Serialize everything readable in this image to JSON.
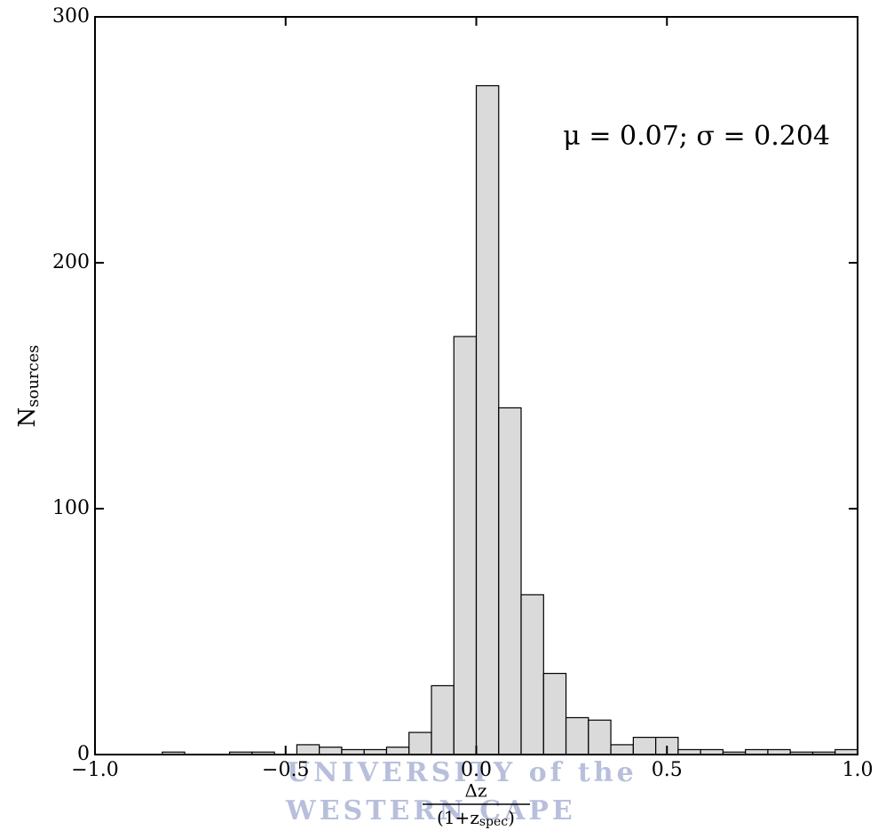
{
  "chart_data": {
    "type": "histogram",
    "bins": [
      -1,
      -0.9412,
      -0.8824,
      -0.8235,
      -0.7647,
      -0.7059,
      -0.6471,
      -0.5882,
      -0.5294,
      -0.4706,
      -0.4118,
      -0.3529,
      -0.2941,
      -0.2353,
      -0.1765,
      -0.1176,
      -0.0588,
      0,
      0.0588,
      0.1176,
      0.1765,
      0.2353,
      0.2941,
      0.3529,
      0.4118,
      0.4706,
      0.5294,
      0.5882,
      0.6471,
      0.7059,
      0.7647,
      0.8235,
      0.8824,
      0.9412,
      1
    ],
    "values": [
      0,
      0,
      0,
      1,
      0,
      0,
      1,
      1,
      0,
      4,
      3,
      2,
      2,
      3,
      9,
      28,
      170,
      272,
      141,
      65,
      33,
      15,
      14,
      4,
      7,
      7,
      2,
      2,
      1,
      2,
      2,
      1,
      1,
      2
    ],
    "color": "#d3d3d3",
    "edgecolor": "#000000",
    "xlim": [
      -1,
      1
    ],
    "ylim": [
      0,
      300
    ],
    "xticks": [
      {
        "value": -1,
        "label": "−1.0"
      },
      {
        "value": -0.5,
        "label": "−0.5"
      },
      {
        "value": 0,
        "label": "0.0"
      },
      0.5,
      {
        "value": 1,
        "label": "1.0"
      }
    ],
    "yticks": [
      0,
      100,
      200,
      300
    ],
    "annotation": "μ = 0.07;   σ = 0.204",
    "ylabel": {
      "main": "N",
      "subscript": "sources"
    },
    "xlabel": {
      "numerator": "Δz",
      "denominator": "(1+z",
      "denominator_subscript": "spec",
      "denominator_end": ")"
    },
    "watermark": [
      "UNIVERSITY of the",
      "WESTERN CAPE"
    ]
  }
}
